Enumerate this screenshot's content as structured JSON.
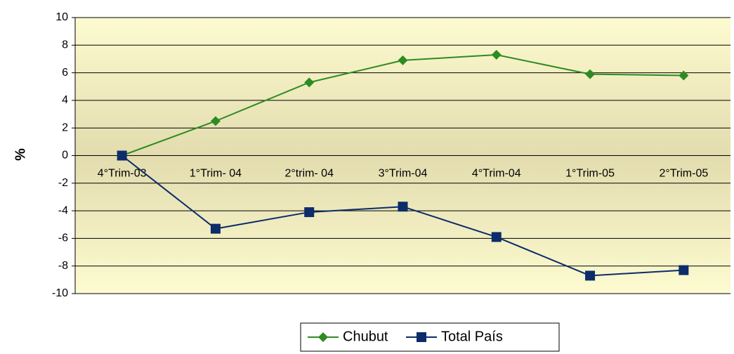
{
  "chart_data": {
    "type": "line",
    "y_label": "%",
    "categories": [
      "4°Trim-03",
      "1°Trim- 04",
      "2°trim- 04",
      "3°Trim-04",
      "4°Trim-04",
      "1°Trim-05",
      "2°Trim-05"
    ],
    "series": [
      {
        "name": "Chubut",
        "color": "#2e8b22",
        "marker": "diamond",
        "values": [
          0,
          2.5,
          5.3,
          6.9,
          7.3,
          5.9,
          5.8
        ]
      },
      {
        "name": "Total País",
        "color": "#0c2c6a",
        "marker": "square",
        "values": [
          0,
          -5.3,
          -4.1,
          -3.7,
          -5.9,
          -8.7,
          -8.3
        ]
      }
    ],
    "ylim": [
      -10,
      10
    ],
    "yticks": [
      -10,
      -8,
      -6,
      -4,
      -2,
      0,
      2,
      4,
      6,
      8,
      10
    ],
    "grid": true,
    "legend": "bottom"
  }
}
